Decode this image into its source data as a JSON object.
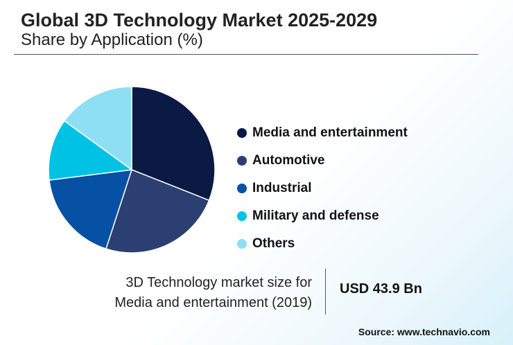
{
  "chart_data": {
    "type": "pie",
    "title": "Global 3D Technology Market 2025-2029",
    "subtitle": "Share by Application (%)",
    "slices": [
      {
        "label": "Media and entertainment",
        "value": 31,
        "color": "#0a1a45"
      },
      {
        "label": "Automotive",
        "value": 24,
        "color": "#2b3f73"
      },
      {
        "label": "Industrial",
        "value": 18,
        "color": "#0651a3"
      },
      {
        "label": "Military and defense",
        "value": 12,
        "color": "#00c2e4"
      },
      {
        "label": "Others",
        "value": 15,
        "color": "#8edff4"
      }
    ],
    "legend_position": "right"
  },
  "market_size": {
    "label_line1": "3D Technology market size for",
    "label_line2": "Media and entertainment (2019)",
    "value": "USD 43.9 Bn"
  },
  "source": "Source: www.technavio.com"
}
